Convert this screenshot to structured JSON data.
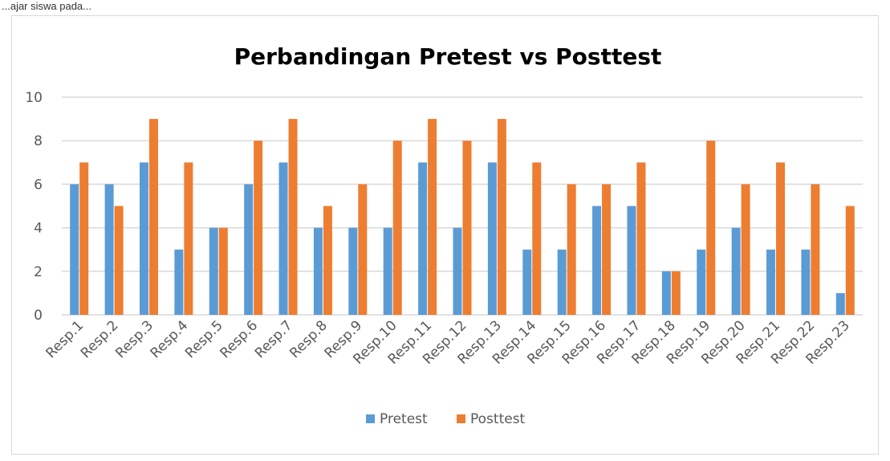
{
  "page": {
    "top_text": "...ajar siswa pada..."
  },
  "colors": {
    "pretest": "#5b9bd5",
    "posttest": "#ed7d31",
    "grid": "#d9d9d9"
  },
  "chart_data": {
    "type": "bar",
    "title": "Perbandingan Pretest vs Posttest",
    "xlabel": "",
    "ylabel": "",
    "ylim": [
      0,
      10
    ],
    "yticks": [
      0,
      2,
      4,
      6,
      8,
      10
    ],
    "grid": true,
    "legend_position": "bottom",
    "categories": [
      "Resp.1",
      "Resp.2",
      "Resp.3",
      "Resp.4",
      "Resp.5",
      "Resp.6",
      "Resp.7",
      "Resp.8",
      "Resp.9",
      "Resp.10",
      "Resp.11",
      "Resp.12",
      "Resp.13",
      "Resp.14",
      "Resp.15",
      "Resp.16",
      "Resp.17",
      "Resp.18",
      "Resp.19",
      "Resp.20",
      "Resp.21",
      "Resp.22",
      "Resp.23"
    ],
    "series": [
      {
        "name": "Pretest",
        "values": [
          6,
          6,
          7,
          3,
          4,
          6,
          7,
          4,
          4,
          4,
          7,
          4,
          7,
          3,
          3,
          5,
          5,
          2,
          3,
          4,
          3,
          3,
          1
        ]
      },
      {
        "name": "Posttest",
        "values": [
          7,
          5,
          9,
          7,
          4,
          8,
          9,
          5,
          6,
          8,
          9,
          8,
          9,
          7,
          6,
          6,
          7,
          2,
          8,
          6,
          7,
          6,
          5
        ]
      }
    ]
  }
}
